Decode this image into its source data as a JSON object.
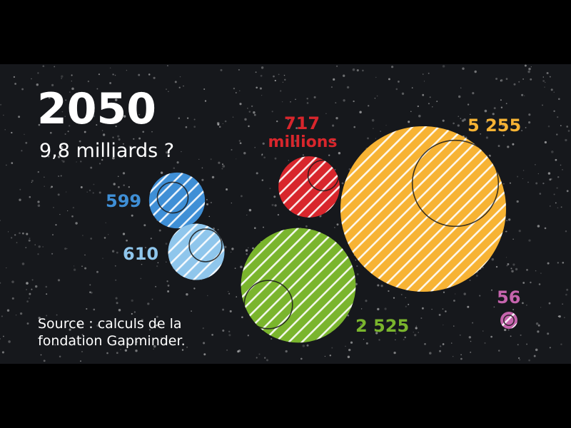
{
  "header": {
    "year": "2050",
    "subtitle": "9,8 milliards ?"
  },
  "source": {
    "line1": "Source : calculs de la",
    "line2": "fondation Gapminder."
  },
  "colors": {
    "background": "#000000",
    "panel": "#16181c",
    "blue": "#3f8fd6",
    "light_blue": "#8fc6ec",
    "red": "#d8262c",
    "green": "#7ab52d",
    "orange": "#f7b334",
    "pink": "#c564ad"
  },
  "chart_data": {
    "type": "bubble",
    "title": "2050",
    "subtitle": "9,8 milliards ?",
    "unit_label": "millions",
    "series": [
      {
        "key": "blue",
        "label": "599",
        "value": 599,
        "color": "#3f8fd6"
      },
      {
        "key": "light_blue",
        "label": "610",
        "value": 610,
        "color": "#8fc6ec"
      },
      {
        "key": "red",
        "label": "717",
        "value": 717,
        "color": "#d8262c"
      },
      {
        "key": "green",
        "label": "2 525",
        "value": 2525,
        "color": "#7ab52d"
      },
      {
        "key": "orange",
        "label": "5 255",
        "value": 5255,
        "color": "#f7b334"
      },
      {
        "key": "pink",
        "label": "56",
        "value": 56,
        "color": "#c564ad"
      }
    ]
  }
}
